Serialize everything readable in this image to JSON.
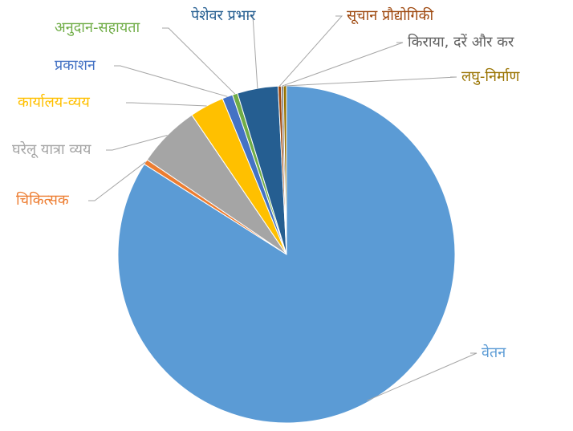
{
  "chart_data": {
    "type": "pie",
    "categories": [
      "वेतन",
      "चिकित्सक",
      "घरेलू यात्रा व्यय",
      "कार्यालय-व्यय",
      "प्रकाशन",
      "अनुदान-सहायता",
      "पेशेवर प्रभार",
      "सूचान प्रौद्योगिकी",
      "किराया, दरें और कर",
      "लघु-निर्माण"
    ],
    "values": [
      84,
      0.5,
      6,
      3.3,
      1,
      0.5,
      3.9,
      0.3,
      0.2,
      0.3
    ],
    "colors": [
      "#5b9bd5",
      "#ed7d31",
      "#a5a5a5",
      "#ffc000",
      "#4472c4",
      "#70ad47",
      "#255e91",
      "#9e480e",
      "#636363",
      "#997300"
    ]
  }
}
